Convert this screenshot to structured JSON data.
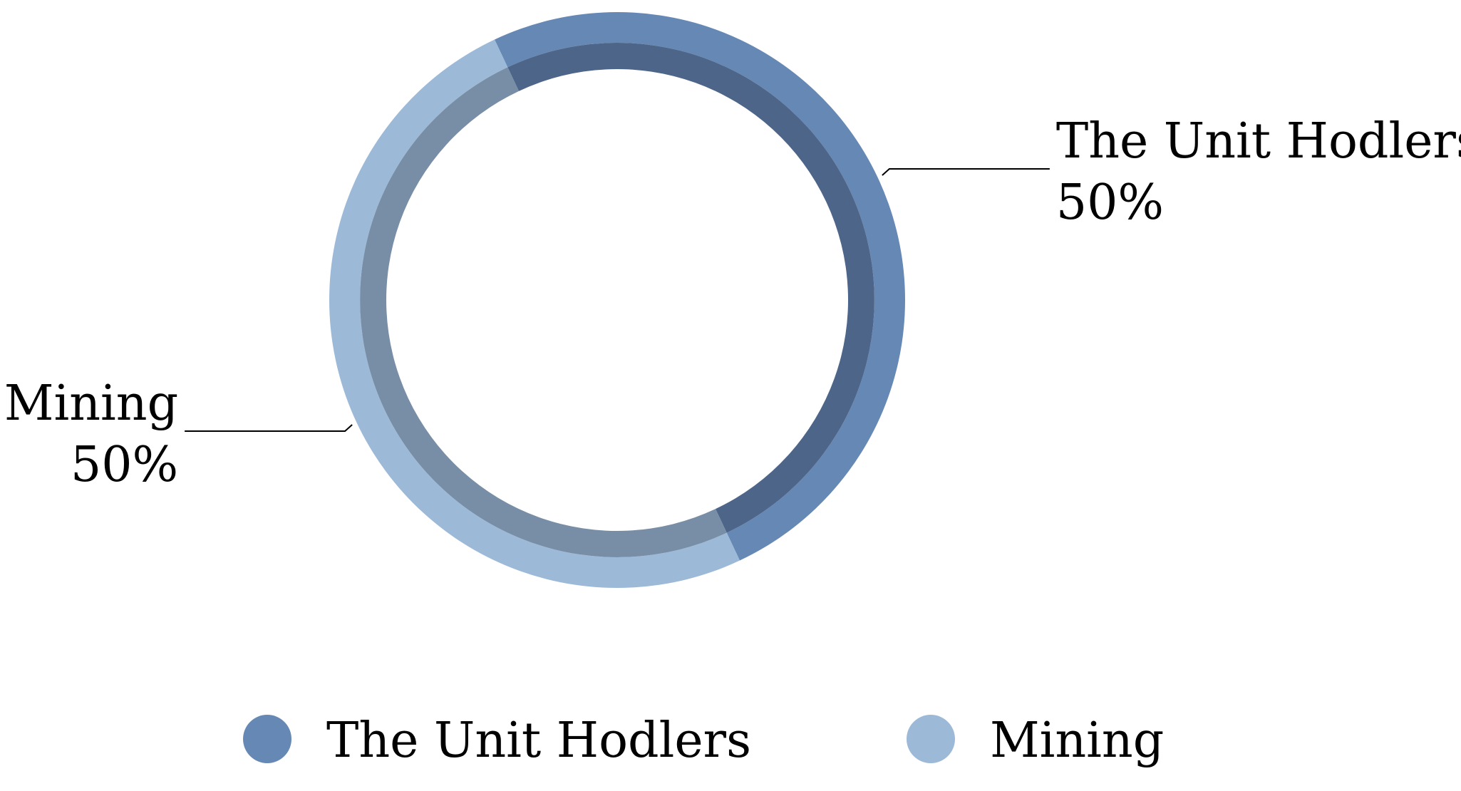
{
  "chart_data": {
    "type": "pie",
    "variant": "donut",
    "title": "",
    "slices": [
      {
        "label": "The Unit Hodlers",
        "value": 50,
        "display": "50%",
        "color": "#6688b4",
        "inner_color": "#4d6588"
      },
      {
        "label": "Mining",
        "value": 50,
        "display": "50%",
        "color": "#9db9d8",
        "inner_color": "#788ea6"
      }
    ],
    "legend": {
      "position": "bottom",
      "items": [
        {
          "label": "The Unit Hodlers",
          "color": "#6688b4"
        },
        {
          "label": "Mining",
          "color": "#9db9d8"
        }
      ]
    }
  }
}
